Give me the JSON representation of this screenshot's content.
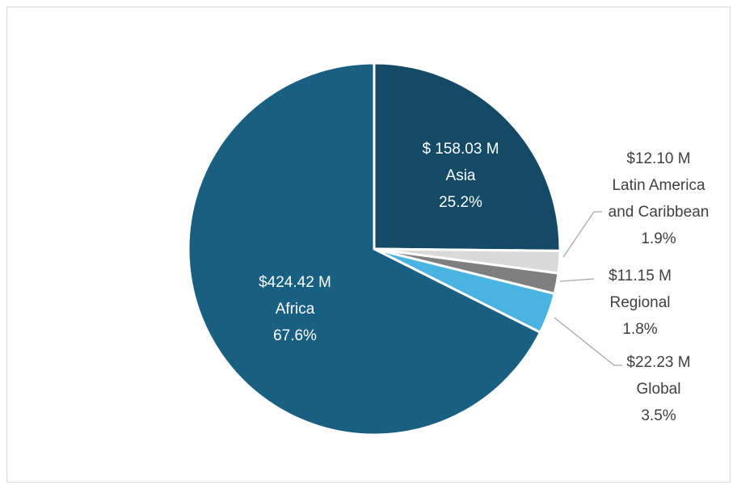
{
  "chart_data": {
    "type": "pie",
    "categories": [
      "Asia",
      "Latin America and Caribbean",
      "Regional",
      "Global",
      "Africa"
    ],
    "values": [
      158.03,
      12.1,
      11.15,
      22.23,
      424.42
    ],
    "value_labels": [
      "$ 158.03 M",
      "$12.10 M",
      "$11.15 M",
      "$22.23 M",
      "$424.42 M"
    ],
    "percents": [
      25.2,
      1.9,
      1.8,
      3.5,
      67.6
    ],
    "percent_labels": [
      "25.2%",
      "1.9%",
      "1.8%",
      "3.5%",
      "67.6%"
    ],
    "colors": [
      "#154a66",
      "#d9d9d9",
      "#7f7f7f",
      "#49b3e2",
      "#185f82"
    ]
  }
}
